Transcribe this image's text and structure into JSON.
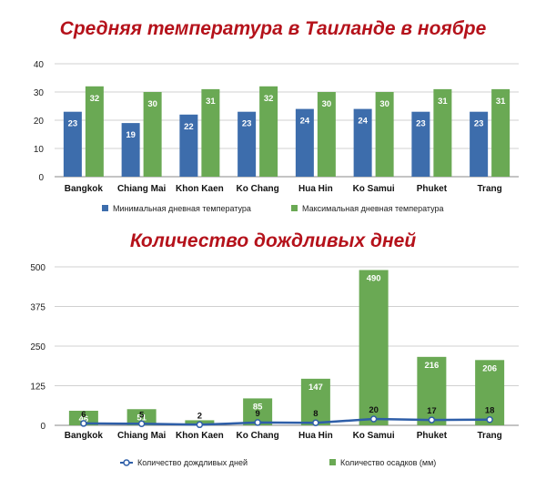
{
  "titles": {
    "temp": "Средняя температура в Таиланде в ноябре",
    "rain": "Количество дождливых дней"
  },
  "colors": {
    "title": "#b5121b",
    "blue": "#3d6dac",
    "green": "#6aa954",
    "line": "#2e5ea8",
    "grid": "#d0d0d0"
  },
  "chart_data": [
    {
      "type": "bar",
      "title": "Средняя температура в Таиланде в ноябре",
      "categories": [
        "Bangkok",
        "Chiang Mai",
        "Khon Kaen",
        "Ko Chang",
        "Hua Hin",
        "Ko Samui",
        "Phuket",
        "Trang"
      ],
      "series": [
        {
          "name": "Минимальная дневная температура",
          "values": [
            23,
            19,
            22,
            23,
            24,
            24,
            23,
            23
          ]
        },
        {
          "name": "Максимальная дневная температура",
          "values": [
            32,
            30,
            31,
            32,
            30,
            30,
            31,
            31
          ]
        }
      ],
      "ylim": [
        0,
        40
      ],
      "yticks": [
        0,
        10,
        20,
        30,
        40
      ],
      "grid": true,
      "legend": "bottom"
    },
    {
      "type": "bar",
      "title": "Количество дождливых дней",
      "categories": [
        "Bangkok",
        "Chiang Mai",
        "Khon Kaen",
        "Ko Chang",
        "Hua Hin",
        "Ko Samui",
        "Phuket",
        "Trang"
      ],
      "series": [
        {
          "name": "Количество осадков (мм)",
          "type": "bar",
          "values": [
            46,
            51,
            16,
            85,
            147,
            490,
            216,
            206
          ]
        },
        {
          "name": "Количество дождливых дней",
          "type": "line",
          "values": [
            6,
            5,
            2,
            9,
            8,
            20,
            17,
            18
          ]
        }
      ],
      "bar_labels": [
        "46",
        "51",
        "",
        "85",
        "147",
        "490",
        "216",
        "206"
      ],
      "line_labels": [
        "6",
        "5",
        "2",
        "9",
        "8",
        "20",
        "17",
        "18"
      ],
      "ylim": [
        0,
        500
      ],
      "yticks": [
        0,
        125,
        250,
        375,
        500
      ],
      "grid": true,
      "legend": "bottom"
    }
  ]
}
